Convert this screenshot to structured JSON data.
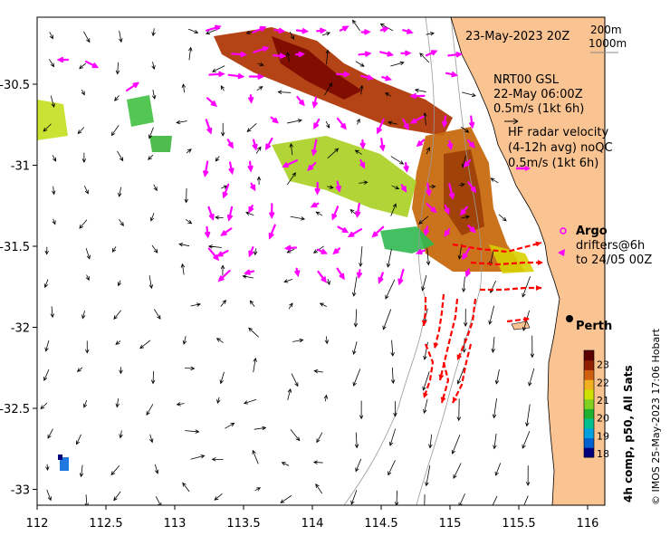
{
  "title_date": "23-May-2023 20Z",
  "isobath_labels": [
    "200m",
    "1000m"
  ],
  "model_legend": {
    "name": "NRT00 GSL",
    "date": "22-May 06:00Z",
    "scale": "0.5m/s (1kt 6h)"
  },
  "hf_legend": {
    "line1": "HF radar velocity",
    "line2": "(4-12h avg) noQC",
    "scale": "0.5m/s (1kt 6h)"
  },
  "argo_label": "Argo",
  "drifter_legend": {
    "line1": "drifters@6h",
    "line2": "to 24/05 00Z"
  },
  "city_label": "Perth",
  "x_ticks": [
    "112",
    "112.5",
    "113",
    "113.5",
    "114",
    "114.5",
    "115",
    "115.5",
    "116"
  ],
  "x_tick_values": [
    112,
    112.5,
    113,
    113.5,
    114,
    114.5,
    115,
    115.5,
    116
  ],
  "y_ticks": [
    "-30.5",
    "-31",
    "-31.5",
    "-32",
    "-32.5",
    "-33"
  ],
  "y_tick_values": [
    -30.5,
    -31,
    -31.5,
    -32,
    -32.5,
    -33
  ],
  "colorbar": {
    "ticks": [
      "23",
      "22",
      "21",
      "20",
      "19",
      "18"
    ],
    "values": [
      23,
      22,
      21,
      20,
      19,
      18
    ],
    "range": [
      17.8,
      23.8
    ],
    "label": "4h comp, p50, All Sats",
    "colors": [
      "#00007f",
      "#0060d0",
      "#00a0e0",
      "#00c090",
      "#20b030",
      "#80d020",
      "#d0e000",
      "#f0b020",
      "#d06010",
      "#902000",
      "#5a0000"
    ]
  },
  "colors": {
    "land": "#fac392",
    "model_arrows": "#000000",
    "hf_arrows": "#ff00ff",
    "drifters": "#ff0000",
    "argo": "#ff00ff"
  },
  "credit": "© IMOS 25-May-2023 17:06 Hobart"
}
